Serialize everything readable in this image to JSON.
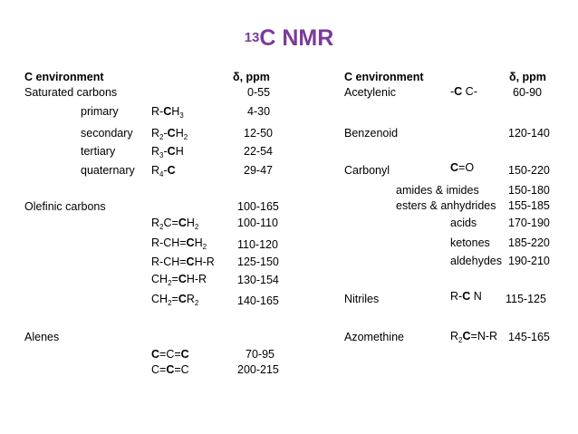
{
  "title": {
    "sup": "13",
    "main": "C NMR"
  },
  "left": {
    "hdr_env": "C environment",
    "hdr_ppm": "δ, ppm",
    "saturated": "Saturated carbons",
    "saturated_range": "0-55",
    "primary": "primary",
    "primary_range": "4-30",
    "secondary": "secondary",
    "secondary_range": "12-50",
    "tertiary": "tertiary",
    "tertiary_range": "22-54",
    "quaternary": "quaternary",
    "quaternary_range": "29-47",
    "olefinic": "Olefinic carbons",
    "olefinic_range": "100-165",
    "r2c_range": "100-110",
    "rch_ch2_range": "110-120",
    "rch_chr_range": "125-150",
    "ch2_chr_range": "130-154",
    "ch2_cr2_range": "140-165",
    "alenes": "Alenes",
    "allene1_range": "70-95",
    "allene2_range": "200-215"
  },
  "right": {
    "hdr_env": "C environment",
    "hdr_ppm": "δ, ppm",
    "acetylenic": "Acetylenic",
    "acetylenic_range": "60-90",
    "benzenoid": "Benzenoid",
    "benzenoid_range": "120-140",
    "carbonyl": "Carbonyl",
    "carbonyl_range": "150-220",
    "amides": "amides & imides",
    "amides_range": "150-180",
    "esters": "esters & anhydrides",
    "esters_range": "155-185",
    "acids": "acids",
    "acids_range": "170-190",
    "ketones": "ketones",
    "ketones_range": "185-220",
    "aldehydes": "aldehydes",
    "aldehydes_range": "190-210",
    "nitriles": "Nitriles",
    "nitriles_range": "115-125",
    "azomethine": "Azomethine",
    "azomethine_range": "145-165"
  }
}
